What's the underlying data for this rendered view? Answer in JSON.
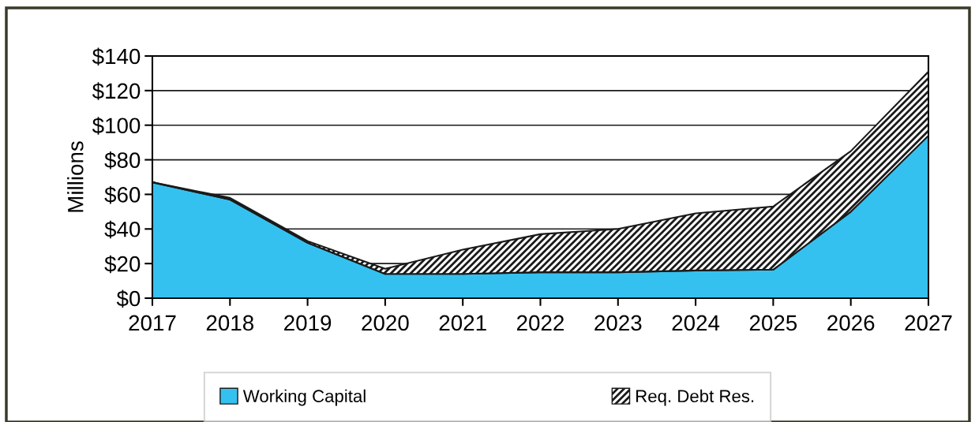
{
  "chart_data": {
    "type": "area",
    "stacked": true,
    "ylabel": "Millions",
    "categories": [
      "2017",
      "2018",
      "2019",
      "2020",
      "2021",
      "2022",
      "2023",
      "2024",
      "2025",
      "2026",
      "2027"
    ],
    "series": [
      {
        "name": "Working Capital",
        "color": "#35c1ef",
        "values": [
          67,
          57,
          32,
          14,
          14,
          15,
          15,
          16,
          16.5,
          50,
          94
        ]
      },
      {
        "name": "Req. Debt Res.",
        "color": "#1a1a1a",
        "values": [
          0,
          1,
          1,
          3,
          14,
          22,
          25,
          33,
          36.5,
          35,
          37
        ]
      }
    ],
    "ylim": [
      0,
      140
    ],
    "yticks": [
      {
        "value": 0,
        "label": "$0"
      },
      {
        "value": 20,
        "label": "$20"
      },
      {
        "value": 40,
        "label": "$40"
      },
      {
        "value": 60,
        "label": "$60"
      },
      {
        "value": 80,
        "label": "$80"
      },
      {
        "value": 100,
        "label": "$100"
      },
      {
        "value": 120,
        "label": "$120"
      },
      {
        "value": 140,
        "label": "$140"
      }
    ],
    "grid": "y",
    "legend": "bottom"
  }
}
